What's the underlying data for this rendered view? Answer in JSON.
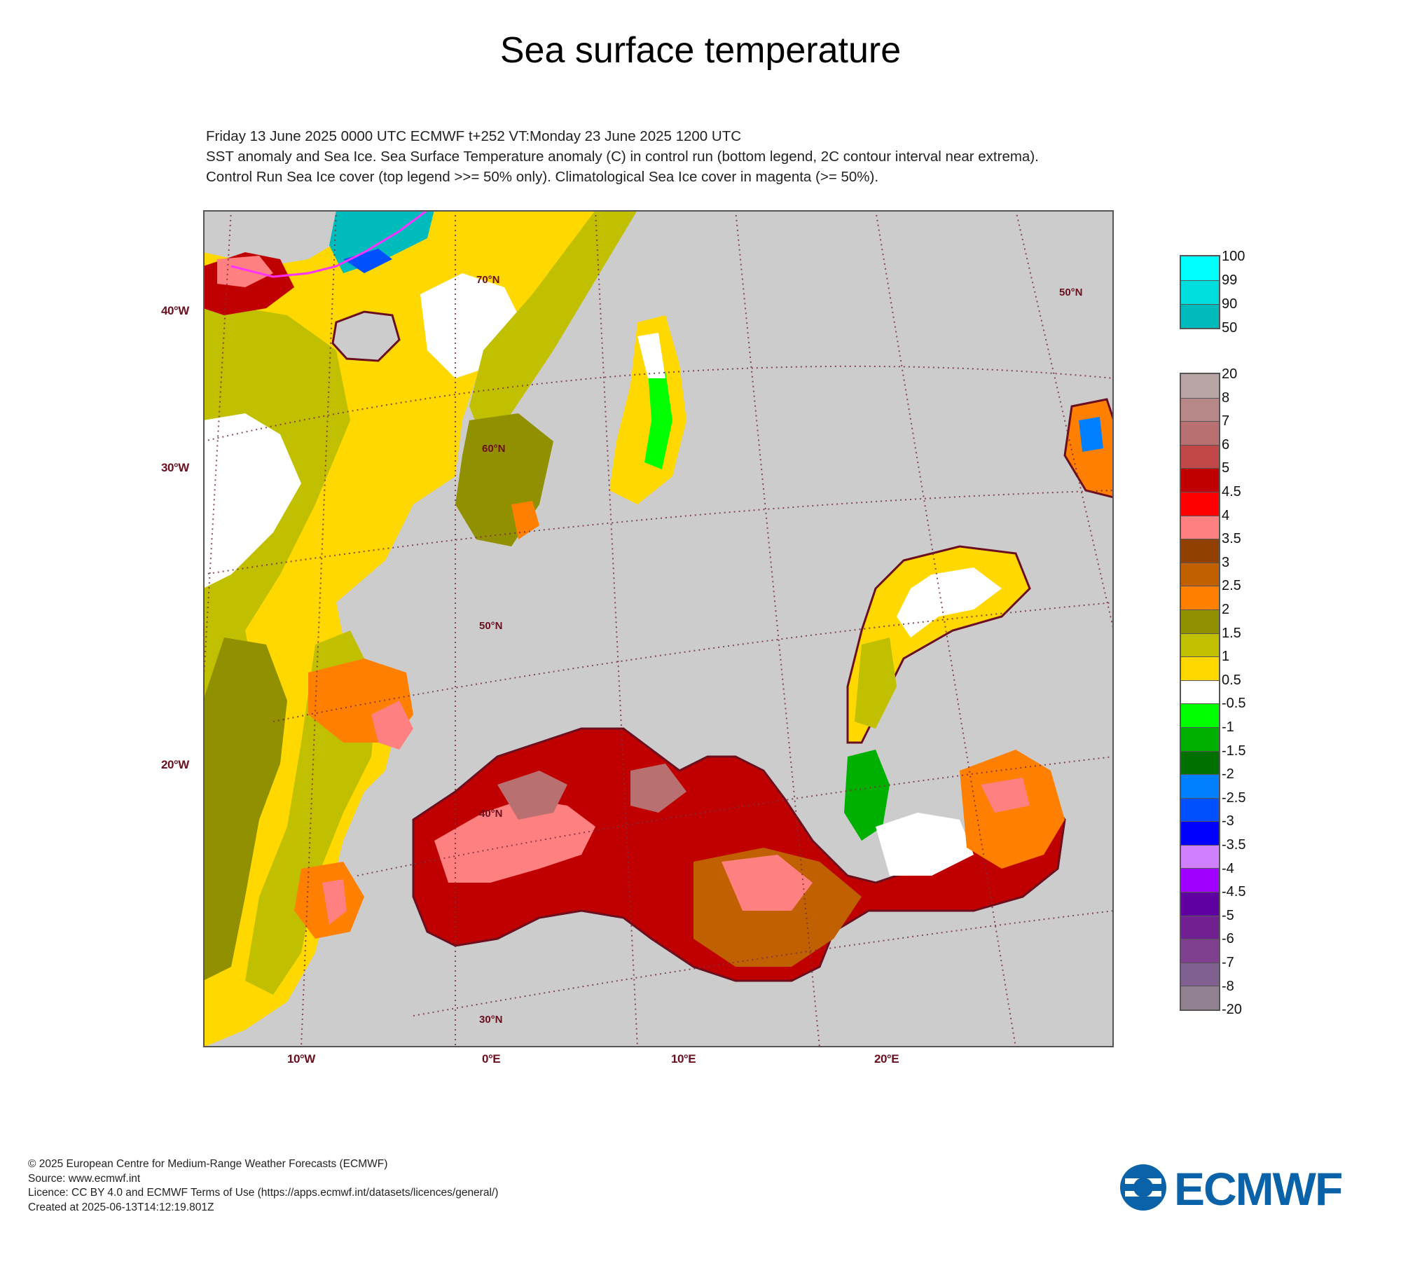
{
  "title": "Sea surface temperature",
  "subtitle": [
    "Friday 13 June 2025 0000 UTC  ECMWF  t+252  VT:Monday 23 June 2025 1200 UTC",
    "SST anomaly and Sea Ice. Sea Surface Temperature anomaly (C) in control run (bottom legend, 2C contour interval near extrema).",
    "Control Run Sea Ice cover (top legend >>= 50% only). Climatological Sea Ice cover in magenta (>= 50%)."
  ],
  "map_labels": {
    "left": [
      "40°W",
      "30°W",
      "20°W"
    ],
    "bottom": [
      "10°W",
      "0°E",
      "10°E",
      "20°E"
    ],
    "inner": [
      "70°N",
      "60°N",
      "50°N",
      "40°N",
      "30°N",
      "50°N"
    ]
  },
  "colors": {
    "land": "#cccccc",
    "coast": "#6b0f1f",
    "grid": "#7a3040",
    "ice_clim": "#ff33ff"
  },
  "legend_top": {
    "labels": [
      "100",
      "99",
      "90",
      "50"
    ],
    "colors": [
      "#00ffff",
      "#00dddd",
      "#00bbbb"
    ]
  },
  "legend_bottom": {
    "labels": [
      "20",
      "8",
      "7",
      "6",
      "5",
      "4.5",
      "4",
      "3.5",
      "3",
      "2.5",
      "2",
      "1.5",
      "1",
      "0.5",
      "-0.5",
      "-1",
      "-1.5",
      "-2",
      "-2.5",
      "-3",
      "-3.5",
      "-4",
      "-4.5",
      "-5",
      "-6",
      "-7",
      "-8",
      "-20"
    ],
    "colors": [
      "#b8a4a4",
      "#b88888",
      "#b87070",
      "#c04848",
      "#c00000",
      "#ff0000",
      "#ff8080",
      "#904000",
      "#c06000",
      "#ff8000",
      "#909000",
      "#c0c000",
      "#ffd800",
      "#ffffff",
      "#00ff00",
      "#00b000",
      "#007000",
      "#0080ff",
      "#0050ff",
      "#0000ff",
      "#d080ff",
      "#a000ff",
      "#6000a0",
      "#702090",
      "#804090",
      "#806090",
      "#908090"
    ]
  },
  "footer": [
    "© 2025 European Centre for Medium-Range Weather Forecasts (ECMWF)",
    "Source: www.ecmwf.int",
    "Licence: CC BY 4.0 and ECMWF Terms of Use (https://apps.ecmwf.int/datasets/licences/general/)",
    "Created at 2025-06-13T14:12:19.801Z"
  ],
  "logo_text": "ECMWF"
}
